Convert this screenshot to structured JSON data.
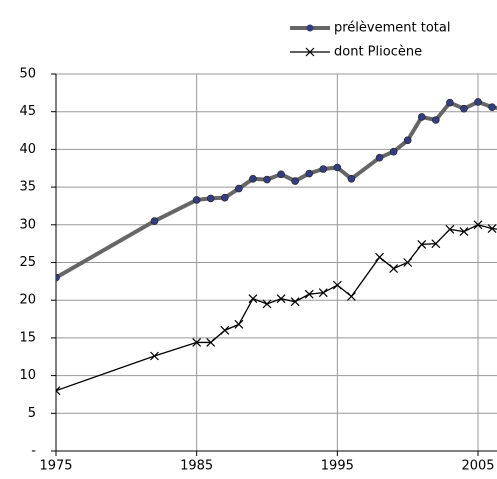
{
  "chart_data": {
    "type": "line",
    "x": [
      1975,
      1982,
      1985,
      1986,
      1987,
      1988,
      1989,
      1990,
      1991,
      1992,
      1993,
      1994,
      1995,
      1996,
      1998,
      1999,
      2000,
      2001,
      2002,
      2003,
      2004,
      2005,
      2006,
      2007
    ],
    "series": [
      {
        "name": "prélèvement total",
        "color": "#666666",
        "marker_color": "#333d80",
        "marker": "circle",
        "values": [
          23,
          30.5,
          33.3,
          33.5,
          33.6,
          34.8,
          36.1,
          36,
          36.7,
          35.8,
          36.8,
          37.4,
          37.6,
          36.1,
          38.9,
          39.7,
          41.2,
          44.3,
          43.9,
          46.2,
          45.4,
          46.3,
          45.6,
          45.3
        ]
      },
      {
        "name": "dont Pliocène",
        "color": "#000000",
        "marker_color": "#000000",
        "marker": "x",
        "values": [
          8,
          12.6,
          14.4,
          14.4,
          16,
          16.8,
          20.2,
          19.5,
          20.2,
          19.8,
          20.8,
          21,
          22,
          20.5,
          25.7,
          24.2,
          25,
          27.4,
          27.5,
          29.4,
          29.1,
          30,
          29.5,
          29.3
        ]
      }
    ],
    "xlim": [
      1975,
      2006.35
    ],
    "xticks": [
      1975,
      1985,
      1995,
      2005
    ],
    "ylim": [
      0,
      50
    ],
    "yticks": [
      {
        "value": 0,
        "label": "-"
      },
      5,
      10,
      15,
      20,
      25,
      30,
      35,
      40,
      45,
      50
    ],
    "grid": true,
    "legend": "top-right"
  }
}
